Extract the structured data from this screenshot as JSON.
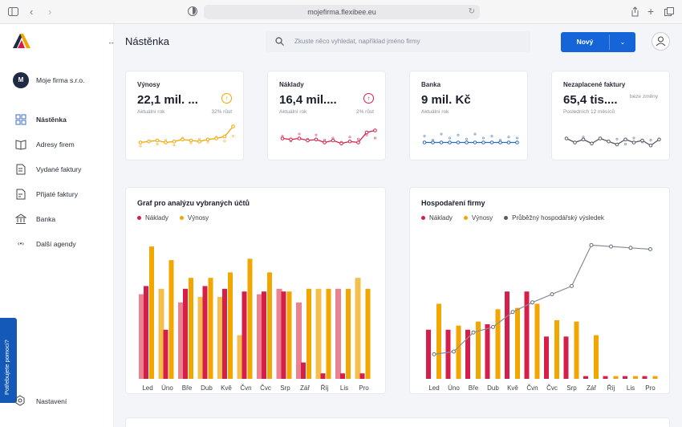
{
  "browser": {
    "url": "mojefirma.flexibee.eu"
  },
  "sidebar": {
    "company_initial": "M",
    "company_name": "Moje firma s.r.o.",
    "items": [
      {
        "label": "Nástěnka",
        "icon": "dashboard-icon",
        "active": true
      },
      {
        "label": "Adresy firem",
        "icon": "book-icon",
        "active": false
      },
      {
        "label": "Vydané faktury",
        "icon": "invoice-out-icon",
        "active": false
      },
      {
        "label": "Přijaté faktury",
        "icon": "invoice-in-icon",
        "active": false
      },
      {
        "label": "Banka",
        "icon": "bank-icon",
        "active": false
      },
      {
        "label": "Další agendy",
        "icon": "more-icon",
        "active": false
      }
    ],
    "help_label": "Potřebujete pomoci?",
    "settings_label": "Nastavení"
  },
  "header": {
    "title": "Nástěnka",
    "search_placeholder": "Zkuste něco vyhledat, například jméno firmy",
    "new_button": "Nový"
  },
  "colors": {
    "revenue": "#f2a600",
    "costs": "#d51f4a",
    "bank": "#2a6ab8",
    "neutral": "#555a66",
    "accent": "#1565d8"
  },
  "kpis": [
    {
      "title": "Výnosy",
      "value": "22,1 mil. ...",
      "sub": "Aktuální rok",
      "change": "32% růst",
      "icon": "↑",
      "color": "#f2a600",
      "spark": [
        6,
        7,
        8,
        6,
        7,
        9,
        8,
        7,
        9,
        10,
        12,
        22
      ],
      "spark2": [
        4,
        9,
        6,
        10,
        5,
        12,
        7,
        11,
        8,
        13,
        9,
        14
      ]
    },
    {
      "title": "Náklady",
      "value": "16,4 mil....",
      "sub": "Aktuální rok",
      "change": "2% růst",
      "icon": "↑",
      "color": "#d51f4a",
      "spark": [
        10,
        9,
        10,
        8,
        9,
        6,
        8,
        5,
        7,
        6,
        16,
        18
      ],
      "spark2": [
        14,
        9,
        16,
        11,
        15,
        10,
        12,
        8,
        13,
        11,
        15,
        12
      ]
    },
    {
      "title": "Banka",
      "value": "9 mil. Kč",
      "sub": "Aktuální rok",
      "change": "",
      "icon": "",
      "color": "#2a6ab8",
      "spark": [
        6,
        6,
        6,
        6,
        6,
        6,
        6,
        6,
        6,
        6,
        6,
        6
      ],
      "spark2": [
        14,
        10,
        16,
        12,
        15,
        11,
        16,
        12,
        14,
        10,
        13,
        12
      ]
    },
    {
      "title": "Nezaplacené faktury",
      "value": "65,4 tis....",
      "sub": "Posledních 12 měsíců",
      "change": "",
      "note": "beze změny",
      "icon": "",
      "color": "#555a66",
      "spark": [
        10,
        6,
        9,
        5,
        10,
        7,
        4,
        9,
        6,
        8,
        3,
        9
      ],
      "spark2": [
        12,
        8,
        13,
        7,
        12,
        9,
        11,
        6,
        12,
        8,
        10,
        11
      ]
    }
  ],
  "chart_data": [
    {
      "type": "bar",
      "title": "Graf pro analýzu vybraných účtů",
      "categories": [
        "Led",
        "Úno",
        "Bře",
        "Dub",
        "Kvě",
        "Čvn",
        "Čvc",
        "Srp",
        "Zář",
        "Říj",
        "Lis",
        "Pro"
      ],
      "series": [
        {
          "name": "Náklady",
          "color": "#d51f4a",
          "values": [
            0.68,
            0.36,
            0.66,
            0.68,
            0.66,
            0.64,
            0.64,
            0.64,
            0.12,
            0.04,
            0.04,
            0.04
          ]
        },
        {
          "name": "Výnosy",
          "color": "#f2a600",
          "values": [
            0.97,
            0.87,
            0.74,
            0.74,
            0.78,
            0.88,
            0.78,
            0.64,
            0.66,
            0.66,
            0.66,
            0.66
          ]
        }
      ],
      "ghosts": [
        0.62,
        0.66,
        0.56,
        0.6,
        0.6,
        0.32,
        0.62,
        0.66,
        0.56,
        0.66,
        0.66,
        0.74
      ],
      "ghost_colors": [
        "#e8838f",
        "#f4c04d",
        "#e8838f",
        "#f4c04d",
        "#f4c04d",
        "#f4c04d",
        "#e8838f",
        "#e8838f",
        "#e8838f",
        "#f4c04d",
        "#e8838f",
        "#f4c04d"
      ],
      "ylim": [
        0,
        1
      ]
    },
    {
      "type": "bar+line",
      "title": "Hospodaření firmy",
      "categories": [
        "Led",
        "Úno",
        "Bře",
        "Dub",
        "Kvě",
        "Čvn",
        "Čvc",
        "Srp",
        "Zář",
        "Říj",
        "Lis",
        "Pro"
      ],
      "series": [
        {
          "name": "Náklady",
          "color": "#d51f4a",
          "values": [
            0.36,
            0.36,
            0.36,
            0.4,
            0.64,
            0.64,
            0.31,
            0.31,
            0.02,
            0.02,
            0.02,
            0.02
          ]
        },
        {
          "name": "Výnosy",
          "color": "#f2a600",
          "values": [
            0.55,
            0.39,
            0.42,
            0.51,
            0.52,
            0.55,
            0.43,
            0.42,
            0.32,
            0.02,
            0.02,
            0.02
          ]
        },
        {
          "name": "Průběžný hospodářský výsledek",
          "color": "#555a66",
          "type": "line",
          "values": [
            0.18,
            0.2,
            0.34,
            0.38,
            0.49,
            0.56,
            0.62,
            0.68,
            0.98,
            0.97,
            0.96,
            0.95
          ]
        }
      ],
      "ylim": [
        0,
        1
      ]
    }
  ]
}
